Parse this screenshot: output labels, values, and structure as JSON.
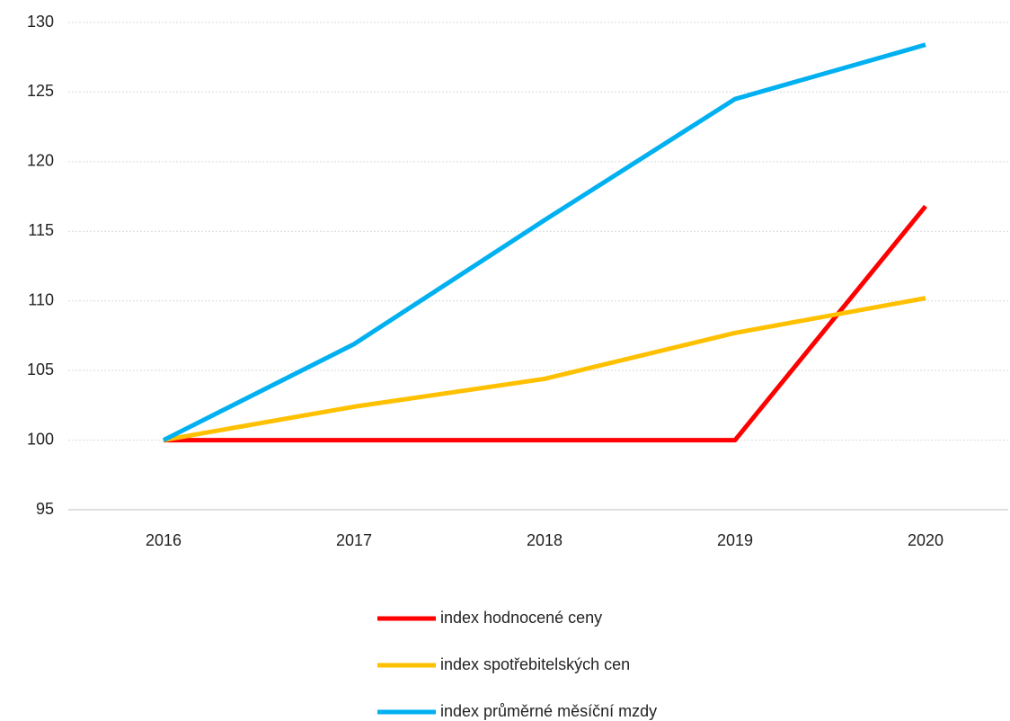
{
  "chart_data": {
    "type": "line",
    "categories": [
      "2016",
      "2017",
      "2018",
      "2019",
      "2020"
    ],
    "series": [
      {
        "name": "index hodnocené ceny",
        "color": "#ff0000",
        "values": [
          100,
          100,
          100,
          100,
          116.8
        ]
      },
      {
        "name": "index spotřebitelských cen",
        "color": "#ffc000",
        "values": [
          100,
          102.4,
          104.4,
          107.7,
          110.2
        ]
      },
      {
        "name": "index průměrné měsíční mzdy",
        "color": "#00b0f0",
        "values": [
          100,
          106.9,
          115.8,
          124.5,
          128.4
        ]
      }
    ],
    "ylim": [
      95,
      130
    ],
    "yticks": [
      95,
      100,
      105,
      110,
      115,
      120,
      125,
      130
    ],
    "grid": true,
    "legend": "bottom"
  }
}
